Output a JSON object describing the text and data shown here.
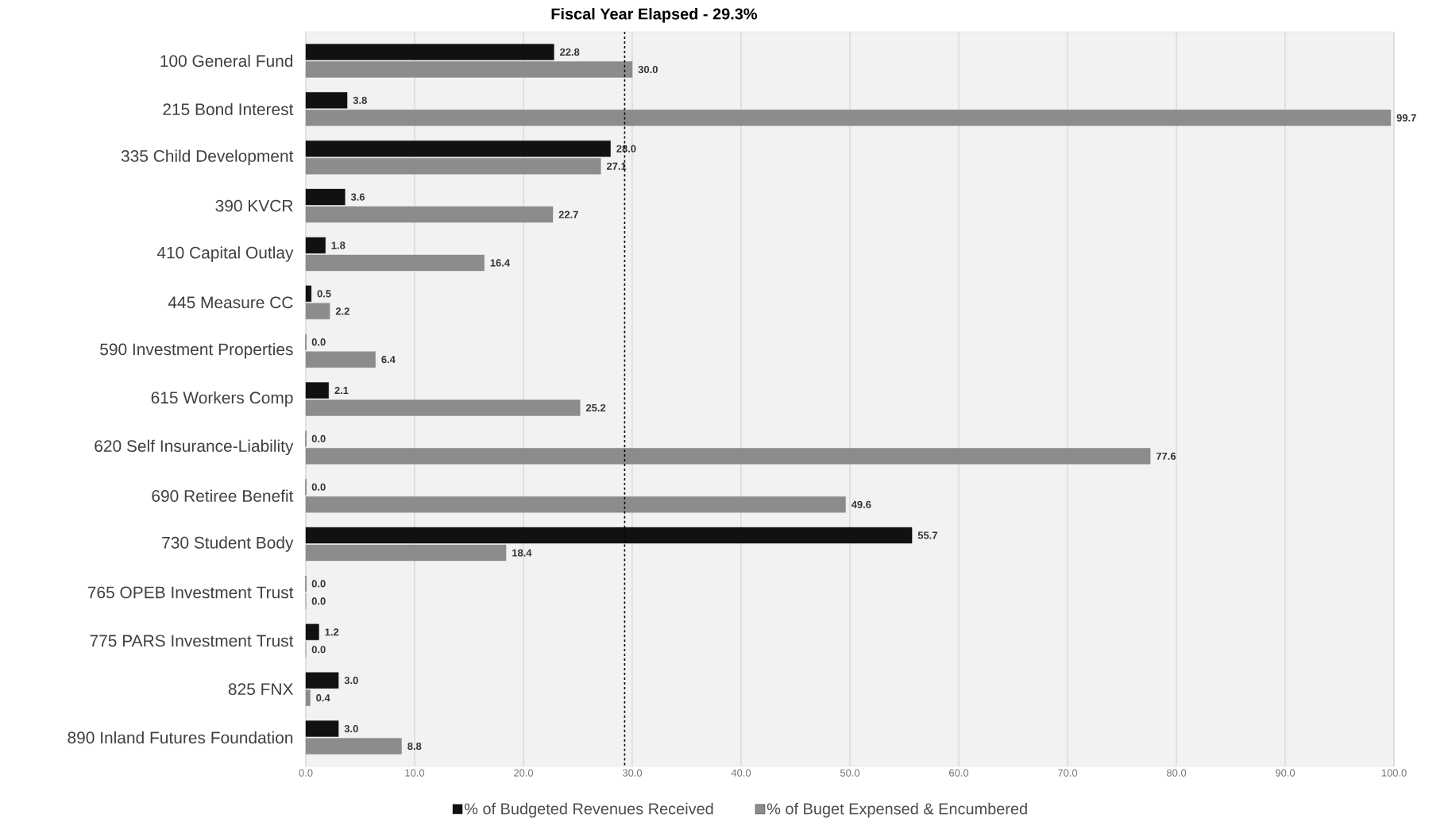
{
  "chart_data": {
    "type": "bar",
    "orientation": "horizontal",
    "title": "Fiscal Year Elapsed - 29.3%",
    "categories": [
      "100 General Fund",
      "215 Bond Interest",
      "335 Child Development",
      "390 KVCR",
      "410 Capital Outlay",
      "445 Measure CC",
      "590 Investment Properties",
      "615 Workers Comp",
      "620 Self Insurance-Liability",
      "690 Retiree Benefit",
      "730 Student Body",
      "765 OPEB Investment Trust",
      "775 PARS Investment Trust",
      "825 FNX",
      "890 Inland Futures Foundation"
    ],
    "series": [
      {
        "name": "% of Budgeted Revenues Received",
        "color": "#111111",
        "values": [
          22.8,
          3.8,
          28.0,
          3.6,
          1.8,
          0.5,
          0.0,
          2.1,
          0.0,
          0.0,
          55.7,
          0.0,
          1.2,
          3.0,
          3.0
        ],
        "value_labels": [
          "22.8",
          "3.8",
          "28.0",
          "3.6",
          "1.8",
          "0.5",
          "0.0",
          "2.1",
          "0.0",
          "0.0",
          "55.7",
          "0.0",
          "1.2",
          "3.0",
          "3.0"
        ]
      },
      {
        "name": "% of Buget Expensed & Encumbered",
        "color": "#8c8c8c",
        "values": [
          30.0,
          99.7,
          27.1,
          22.7,
          16.4,
          2.2,
          6.4,
          25.2,
          77.6,
          49.6,
          18.4,
          0.0,
          0.0,
          0.4,
          8.8
        ],
        "value_labels": [
          "30.0",
          "99.7",
          "27.1",
          "22.7",
          "16.4",
          "2.2",
          "6.4",
          "25.2",
          "77.6",
          "49.6",
          "18.4",
          "0.0",
          "0.0",
          "0.4",
          "8.8"
        ]
      }
    ],
    "xlim": [
      0,
      100
    ],
    "xticks": [
      {
        "value": 0,
        "label": "0.0"
      },
      {
        "value": 10,
        "label": "10.0"
      },
      {
        "value": 20,
        "label": "20.0"
      },
      {
        "value": 30,
        "label": "30.0"
      },
      {
        "value": 40,
        "label": "40.0"
      },
      {
        "value": 50,
        "label": "50.0"
      },
      {
        "value": 60,
        "label": "60.0"
      },
      {
        "value": 70,
        "label": "70.0"
      },
      {
        "value": 80,
        "label": "80.0"
      },
      {
        "value": 90,
        "label": "90.0"
      },
      {
        "value": 100,
        "label": "100.0"
      }
    ],
    "ref_lines": [
      {
        "axis": "x",
        "value": 29.3,
        "line_style": "dashed",
        "color": "#000000"
      }
    ],
    "grid": "x",
    "legend": "bottom"
  }
}
